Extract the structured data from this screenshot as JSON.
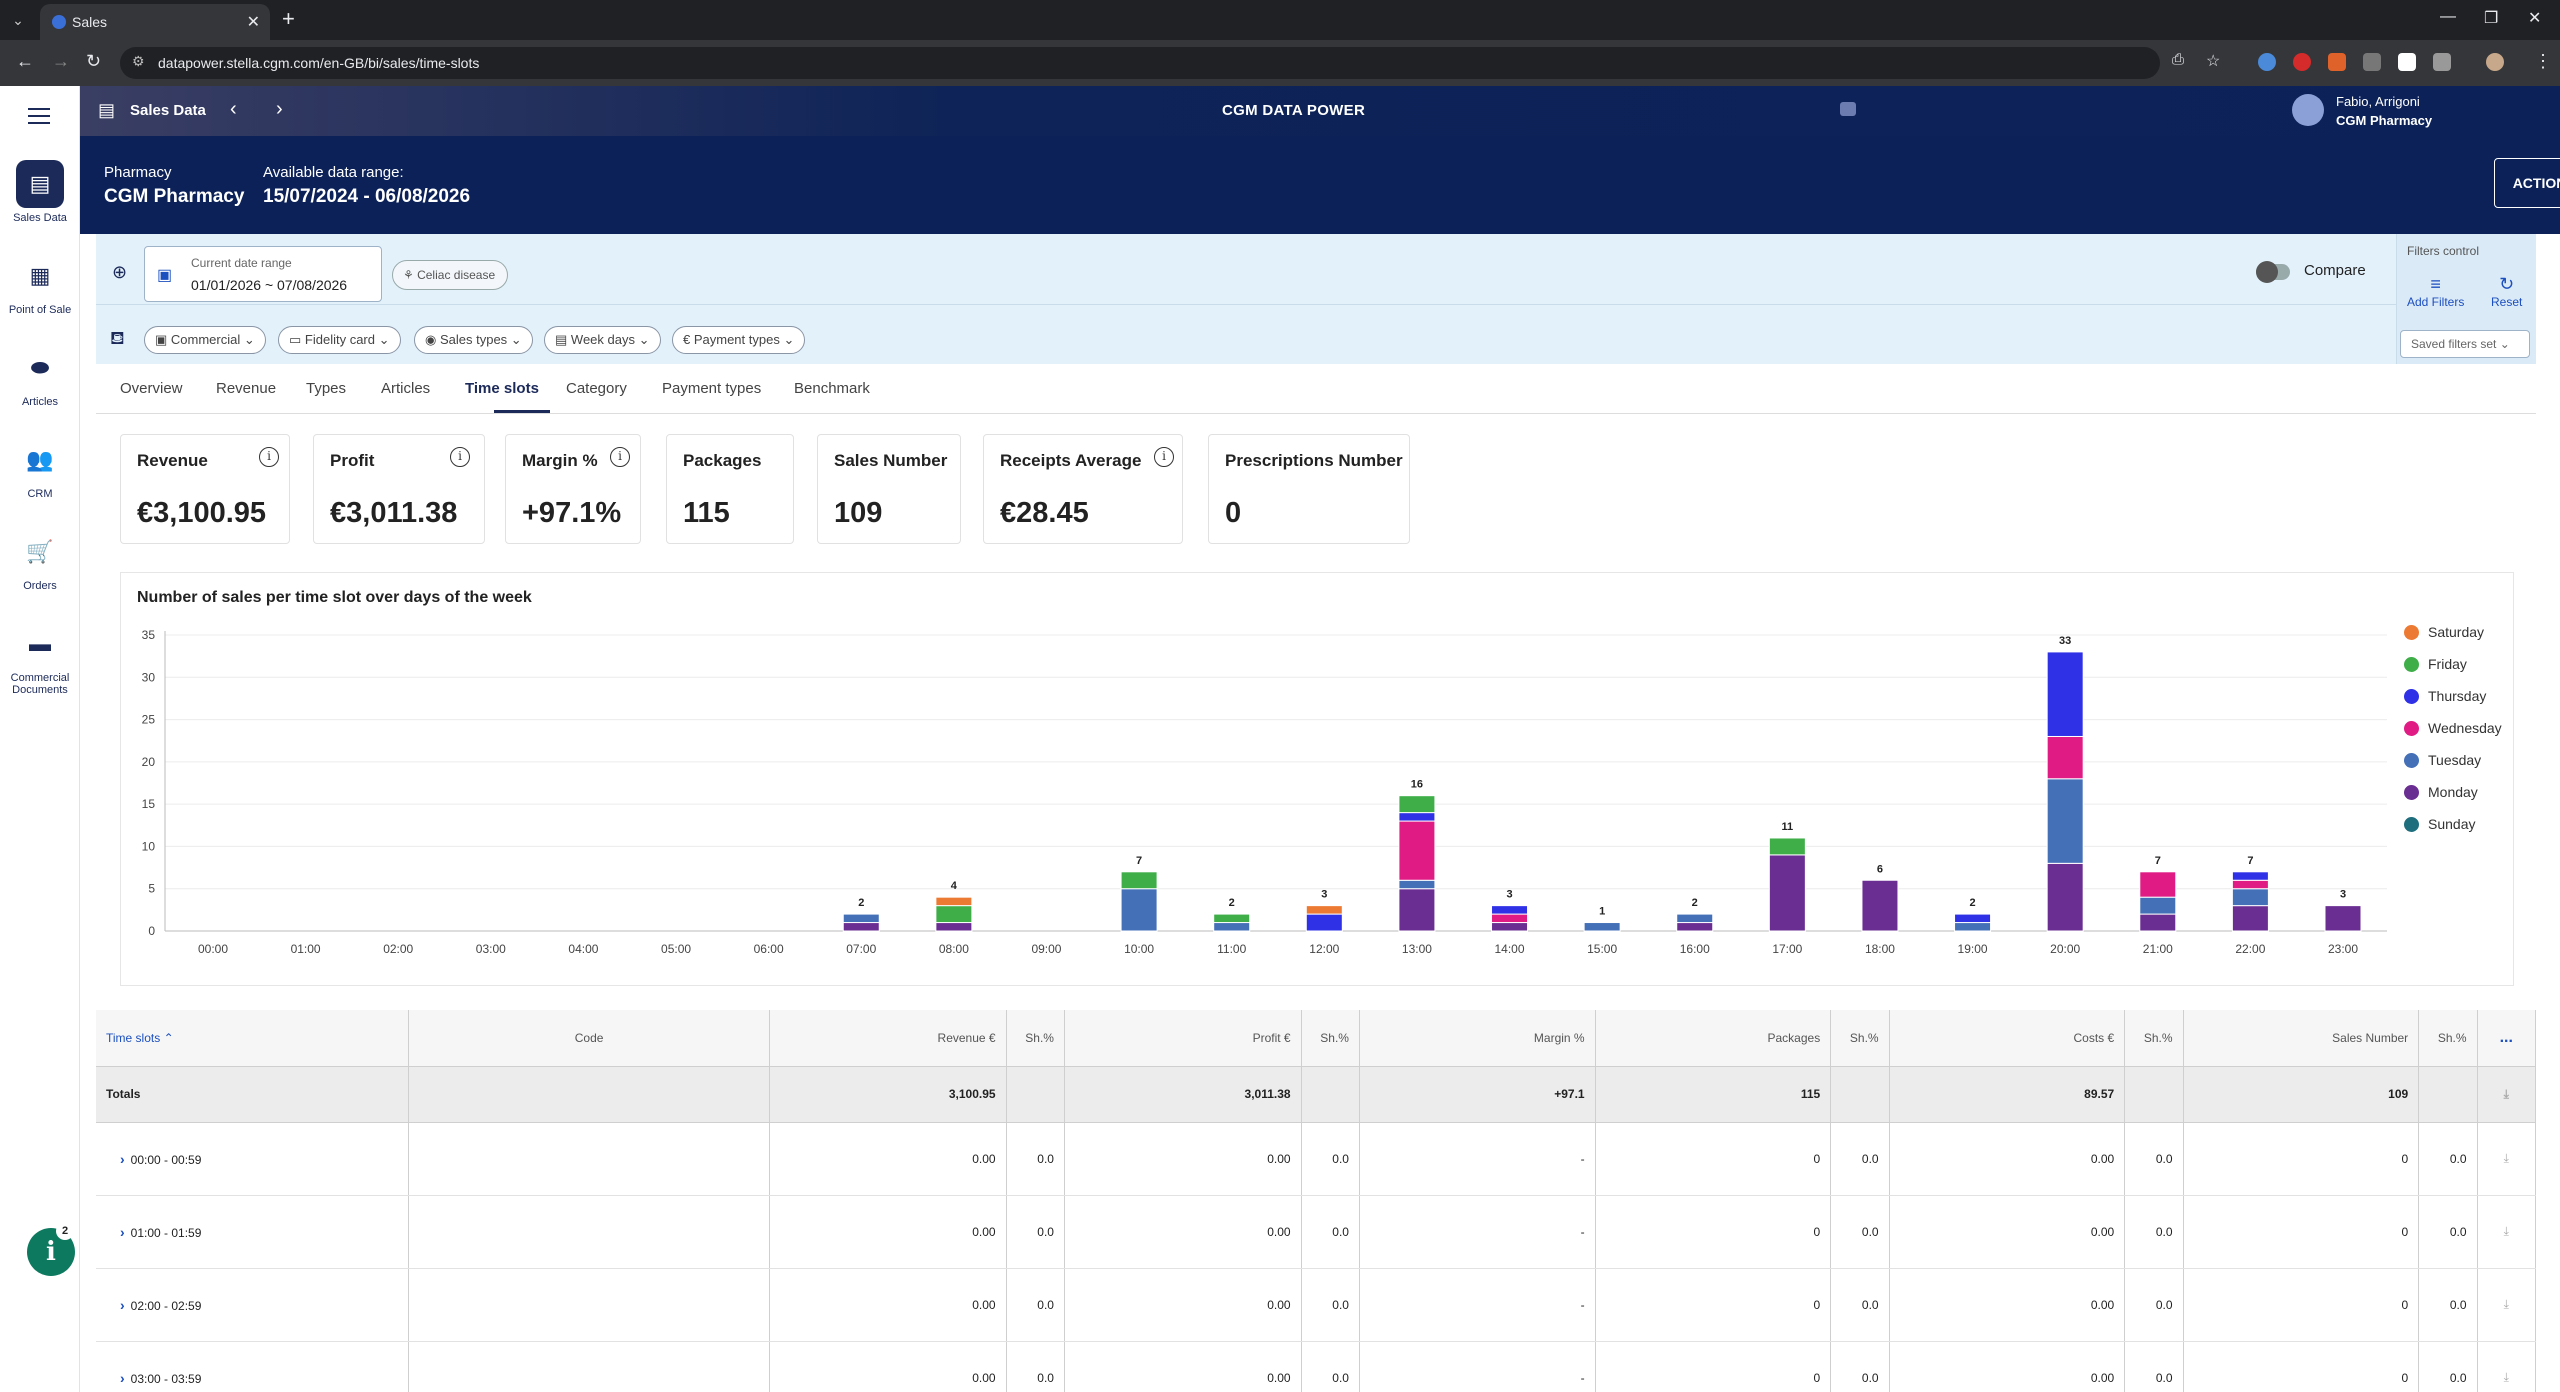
{
  "browser": {
    "tab_title": "Sales",
    "url": "datapower.stella.cgm.com/en-GB/bi/sales/time-slots"
  },
  "leftnav": {
    "items": [
      {
        "label": "Sales Data",
        "icon": "register-icon"
      },
      {
        "label": "Point of Sale",
        "icon": "calculator-icon"
      },
      {
        "label": "Articles",
        "icon": "pill-icon"
      },
      {
        "label": "CRM",
        "icon": "people-icon"
      },
      {
        "label": "Orders",
        "icon": "cart-icon"
      },
      {
        "label": "Commercial Documents",
        "icon": "document-icon"
      }
    ],
    "notification_count": "2"
  },
  "header": {
    "section_title": "Sales Data",
    "app_title": "CGM DATA POWER",
    "user_name": "Fabio, Arrigoni",
    "user_org": "CGM Pharmacy"
  },
  "pharmacy": {
    "pharmacy_label": "Pharmacy",
    "pharmacy_name": "CGM Pharmacy",
    "range_label": "Available data range:",
    "range_value": "15/07/2024 - 06/08/2026",
    "actions_label": "ACTIONS"
  },
  "filters": {
    "date_label": "Current date range",
    "date_value": "01/01/2026 ~ 07/08/2026",
    "celiac_label": "Celiac disease",
    "compare_label": "Compare",
    "control_title": "Filters control",
    "add_filters": "Add Filters",
    "reset": "Reset",
    "saved_filters": "Saved filters set",
    "chips": [
      "Commercial",
      "Fidelity card",
      "Sales types",
      "Week days",
      "Payment types"
    ]
  },
  "tabs": [
    "Overview",
    "Revenue",
    "Types",
    "Articles",
    "Time slots",
    "Category",
    "Payment types",
    "Benchmark"
  ],
  "active_tab": "Time slots",
  "kpis": [
    {
      "title": "Revenue",
      "value": "€3,100.95",
      "info": true
    },
    {
      "title": "Profit",
      "value": "€3,011.38",
      "info": true
    },
    {
      "title": "Margin %",
      "value": "+97.1%",
      "info": true
    },
    {
      "title": "Packages",
      "value": "115",
      "info": false
    },
    {
      "title": "Sales Number",
      "value": "109",
      "info": false
    },
    {
      "title": "Receipts Average",
      "value": "€28.45",
      "info": true
    },
    {
      "title": "Prescriptions Number",
      "value": "0",
      "info": false
    }
  ],
  "chart_data": {
    "type": "bar",
    "stacked": true,
    "title": "Number of sales per time slot over days of the week",
    "xlabel": "",
    "ylabel": "",
    "ylim": [
      0,
      35
    ],
    "yticks": [
      0,
      5,
      10,
      15,
      20,
      25,
      30,
      35
    ],
    "grid": true,
    "legend_position": "right",
    "categories": [
      "00:00",
      "01:00",
      "02:00",
      "03:00",
      "04:00",
      "05:00",
      "06:00",
      "07:00",
      "08:00",
      "09:00",
      "10:00",
      "11:00",
      "12:00",
      "13:00",
      "14:00",
      "15:00",
      "16:00",
      "17:00",
      "18:00",
      "19:00",
      "20:00",
      "21:00",
      "22:00",
      "23:00"
    ],
    "series": [
      {
        "name": "Sunday",
        "color": "#1f6e7e",
        "values": [
          0,
          0,
          0,
          0,
          0,
          0,
          0,
          0,
          0,
          0,
          0,
          0,
          0,
          0,
          0,
          0,
          0,
          0,
          0,
          0,
          0,
          0,
          0,
          0
        ]
      },
      {
        "name": "Monday",
        "color": "#6a2d91",
        "values": [
          0,
          0,
          0,
          0,
          0,
          0,
          0,
          1,
          1,
          0,
          0,
          0,
          0,
          5,
          1,
          0,
          1,
          9,
          6,
          0,
          8,
          2,
          3,
          3
        ]
      },
      {
        "name": "Tuesday",
        "color": "#4470b8",
        "values": [
          0,
          0,
          0,
          0,
          0,
          0,
          0,
          1,
          0,
          0,
          5,
          1,
          0,
          1,
          0,
          1,
          1,
          0,
          0,
          1,
          10,
          2,
          2,
          0
        ]
      },
      {
        "name": "Wednesday",
        "color": "#e01b84",
        "values": [
          0,
          0,
          0,
          0,
          0,
          0,
          0,
          0,
          0,
          0,
          0,
          0,
          0,
          7,
          1,
          0,
          0,
          0,
          0,
          0,
          5,
          3,
          1,
          0
        ]
      },
      {
        "name": "Thursday",
        "color": "#2f31e6",
        "values": [
          0,
          0,
          0,
          0,
          0,
          0,
          0,
          0,
          0,
          0,
          0,
          0,
          2,
          1,
          1,
          0,
          0,
          0,
          0,
          1,
          10,
          0,
          1,
          0
        ]
      },
      {
        "name": "Friday",
        "color": "#3fae49",
        "values": [
          0,
          0,
          0,
          0,
          0,
          0,
          0,
          0,
          2,
          0,
          2,
          1,
          0,
          2,
          0,
          0,
          0,
          2,
          0,
          0,
          0,
          0,
          0,
          0
        ]
      },
      {
        "name": "Saturday",
        "color": "#ec7a33",
        "values": [
          0,
          0,
          0,
          0,
          0,
          0,
          0,
          0,
          1,
          0,
          0,
          0,
          1,
          0,
          0,
          0,
          0,
          0,
          0,
          0,
          0,
          0,
          0,
          0
        ]
      }
    ],
    "totals": [
      0,
      0,
      0,
      0,
      0,
      0,
      0,
      2,
      4,
      0,
      7,
      2,
      3,
      16,
      3,
      1,
      2,
      11,
      6,
      2,
      33,
      7,
      7,
      3
    ]
  },
  "legend_order": [
    "Saturday",
    "Friday",
    "Thursday",
    "Wednesday",
    "Tuesday",
    "Monday",
    "Sunday"
  ],
  "table": {
    "headers": [
      "Time slots",
      "Code",
      "Revenue €",
      "Sh.%",
      "Profit €",
      "Sh.%",
      "Margin %",
      "Packages",
      "Sh.%",
      "Costs €",
      "Sh.%",
      "Sales Number",
      "Sh.%"
    ],
    "more": "...",
    "totals": [
      "Totals",
      "",
      "3,100.95",
      "",
      "3,011.38",
      "",
      "+97.1",
      "115",
      "",
      "89.57",
      "",
      "109",
      ""
    ],
    "rows": [
      [
        "00:00 - 00:59",
        "",
        "0.00",
        "0.0",
        "0.00",
        "0.0",
        "-",
        "0",
        "0.0",
        "0.00",
        "0.0",
        "0",
        "0.0"
      ],
      [
        "01:00 - 01:59",
        "",
        "0.00",
        "0.0",
        "0.00",
        "0.0",
        "-",
        "0",
        "0.0",
        "0.00",
        "0.0",
        "0",
        "0.0"
      ],
      [
        "02:00 - 02:59",
        "",
        "0.00",
        "0.0",
        "0.00",
        "0.0",
        "-",
        "0",
        "0.0",
        "0.00",
        "0.0",
        "0",
        "0.0"
      ],
      [
        "03:00 - 03:59",
        "",
        "0.00",
        "0.0",
        "0.00",
        "0.0",
        "-",
        "0",
        "0.0",
        "0.00",
        "0.0",
        "0",
        "0.0"
      ]
    ]
  }
}
